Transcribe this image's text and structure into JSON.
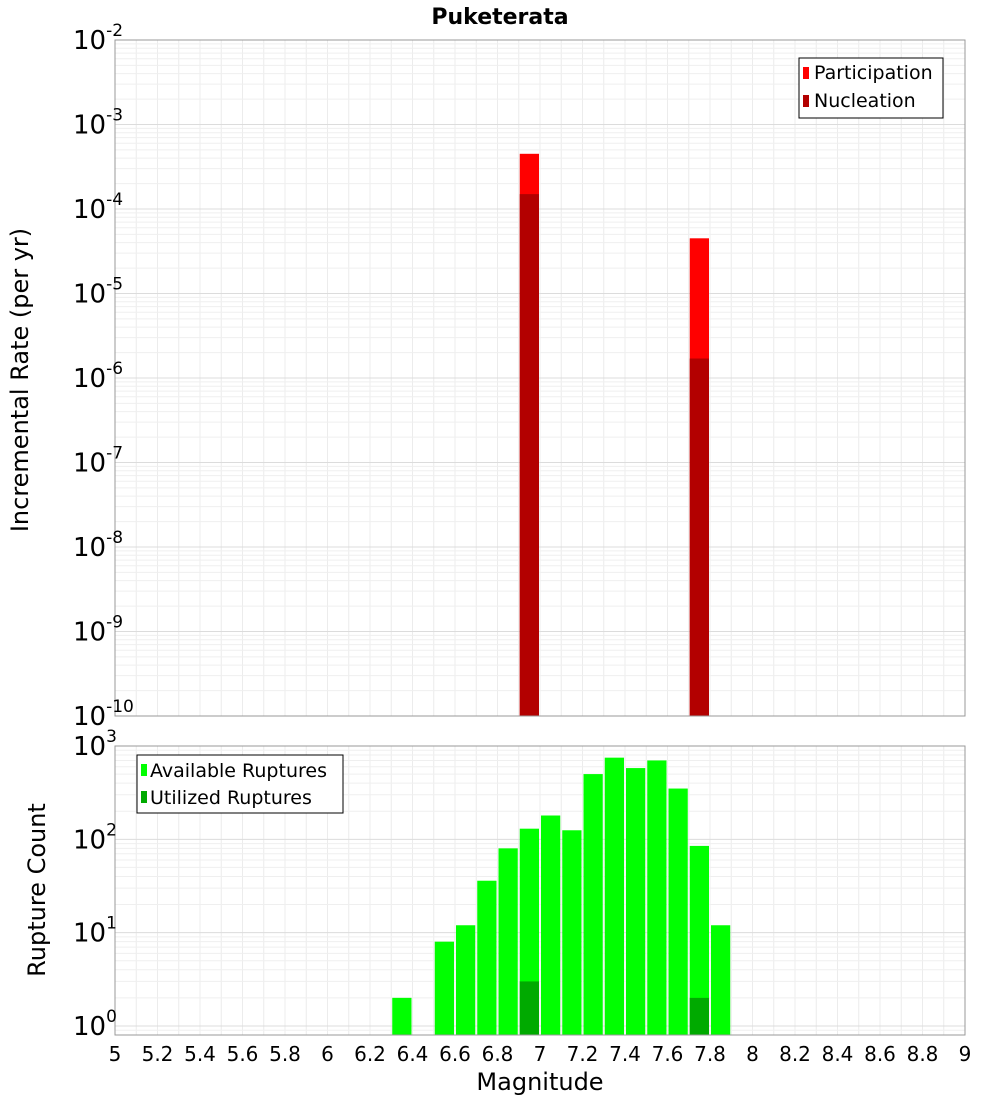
{
  "title": "Puketerata",
  "xlabel": "Magnitude",
  "xticks": [
    "5",
    "5.2",
    "5.4",
    "5.6",
    "5.8",
    "6",
    "6.2",
    "6.4",
    "6.6",
    "6.8",
    "7",
    "7.2",
    "7.4",
    "7.6",
    "7.8",
    "8",
    "8.2",
    "8.4",
    "8.6",
    "8.8",
    "9"
  ],
  "chart_data": [
    {
      "type": "bar",
      "ylabel": "Incremental Rate (per yr)",
      "yscale": "log",
      "ylim": [
        1e-10,
        0.01
      ],
      "xlim": [
        5,
        9
      ],
      "grid": true,
      "legend_position": "top-right",
      "ytick_exponents": [
        "-10",
        "-9",
        "-8",
        "-7",
        "-6",
        "-5",
        "-4",
        "-3",
        "-2"
      ],
      "series": [
        {
          "name": "Participation",
          "color": "#ff0000",
          "x": [
            6.95,
            7.75
          ],
          "values": [
            0.00045,
            4.5e-05
          ]
        },
        {
          "name": "Nucleation",
          "color": "#b30000",
          "x": [
            6.95,
            7.75
          ],
          "values": [
            0.00015,
            1.7e-06
          ]
        }
      ]
    },
    {
      "type": "bar",
      "ylabel": "Rupture Count",
      "yscale": "log",
      "ylim": [
        0.8,
        1000
      ],
      "xlim": [
        5,
        9
      ],
      "grid": true,
      "legend_position": "top-left",
      "ytick_exponents": [
        "0",
        "1",
        "2",
        "3"
      ],
      "series": [
        {
          "name": "Available Ruptures",
          "color": "#00ff00",
          "x": [
            6.35,
            6.55,
            6.65,
            6.75,
            6.85,
            6.95,
            7.05,
            7.15,
            7.25,
            7.35,
            7.45,
            7.55,
            7.65,
            7.75,
            7.85
          ],
          "values": [
            2,
            8,
            12,
            36,
            80,
            130,
            180,
            125,
            500,
            750,
            580,
            700,
            350,
            85,
            12
          ]
        },
        {
          "name": "Utilized Ruptures",
          "color": "#00aa00",
          "x": [
            6.95,
            7.75
          ],
          "values": [
            3,
            2
          ]
        }
      ]
    }
  ]
}
